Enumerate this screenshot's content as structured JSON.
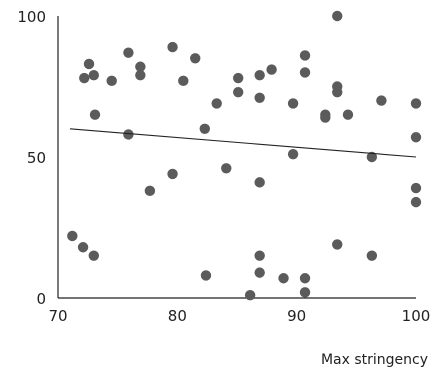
{
  "chart_data": {
    "type": "scatter",
    "title": "",
    "xlabel": "Max stringency",
    "ylabel": "",
    "xlim": [
      70,
      100
    ],
    "ylim": [
      0,
      100
    ],
    "x_ticks": [
      "70",
      "80",
      "90",
      "100"
    ],
    "y_ticks": [
      "0",
      "50",
      "100"
    ],
    "grid": false,
    "legend": "none",
    "marker_color": "#5b5b5b",
    "trendline": {
      "x": [
        71,
        100
      ],
      "y": [
        60,
        50
      ]
    },
    "points": [
      {
        "x": 71.2,
        "y": 22
      },
      {
        "x": 72.1,
        "y": 18
      },
      {
        "x": 73.0,
        "y": 15
      },
      {
        "x": 72.2,
        "y": 78
      },
      {
        "x": 72.6,
        "y": 83
      },
      {
        "x": 73.0,
        "y": 79
      },
      {
        "x": 73.1,
        "y": 65
      },
      {
        "x": 74.5,
        "y": 77
      },
      {
        "x": 75.9,
        "y": 87
      },
      {
        "x": 75.9,
        "y": 58
      },
      {
        "x": 76.9,
        "y": 82
      },
      {
        "x": 76.9,
        "y": 79
      },
      {
        "x": 77.7,
        "y": 38
      },
      {
        "x": 79.6,
        "y": 89
      },
      {
        "x": 79.6,
        "y": 44
      },
      {
        "x": 80.5,
        "y": 77
      },
      {
        "x": 81.5,
        "y": 85
      },
      {
        "x": 82.3,
        "y": 60
      },
      {
        "x": 82.4,
        "y": 8
      },
      {
        "x": 83.3,
        "y": 69
      },
      {
        "x": 84.1,
        "y": 46
      },
      {
        "x": 85.1,
        "y": 78
      },
      {
        "x": 85.1,
        "y": 73
      },
      {
        "x": 86.1,
        "y": 1
      },
      {
        "x": 86.9,
        "y": 79
      },
      {
        "x": 86.9,
        "y": 71
      },
      {
        "x": 86.9,
        "y": 41
      },
      {
        "x": 86.9,
        "y": 15
      },
      {
        "x": 86.9,
        "y": 9
      },
      {
        "x": 87.9,
        "y": 81
      },
      {
        "x": 88.9,
        "y": 7
      },
      {
        "x": 89.7,
        "y": 69
      },
      {
        "x": 89.7,
        "y": 51
      },
      {
        "x": 90.7,
        "y": 86
      },
      {
        "x": 90.7,
        "y": 80
      },
      {
        "x": 90.7,
        "y": 7
      },
      {
        "x": 90.7,
        "y": 2
      },
      {
        "x": 92.4,
        "y": 65
      },
      {
        "x": 92.4,
        "y": 64
      },
      {
        "x": 93.4,
        "y": 100
      },
      {
        "x": 93.4,
        "y": 75
      },
      {
        "x": 93.4,
        "y": 73
      },
      {
        "x": 93.4,
        "y": 19
      },
      {
        "x": 94.3,
        "y": 65
      },
      {
        "x": 96.3,
        "y": 50
      },
      {
        "x": 96.3,
        "y": 15
      },
      {
        "x": 97.1,
        "y": 70
      },
      {
        "x": 100,
        "y": 69
      },
      {
        "x": 100,
        "y": 57
      },
      {
        "x": 100,
        "y": 39
      },
      {
        "x": 100,
        "y": 34
      }
    ]
  }
}
